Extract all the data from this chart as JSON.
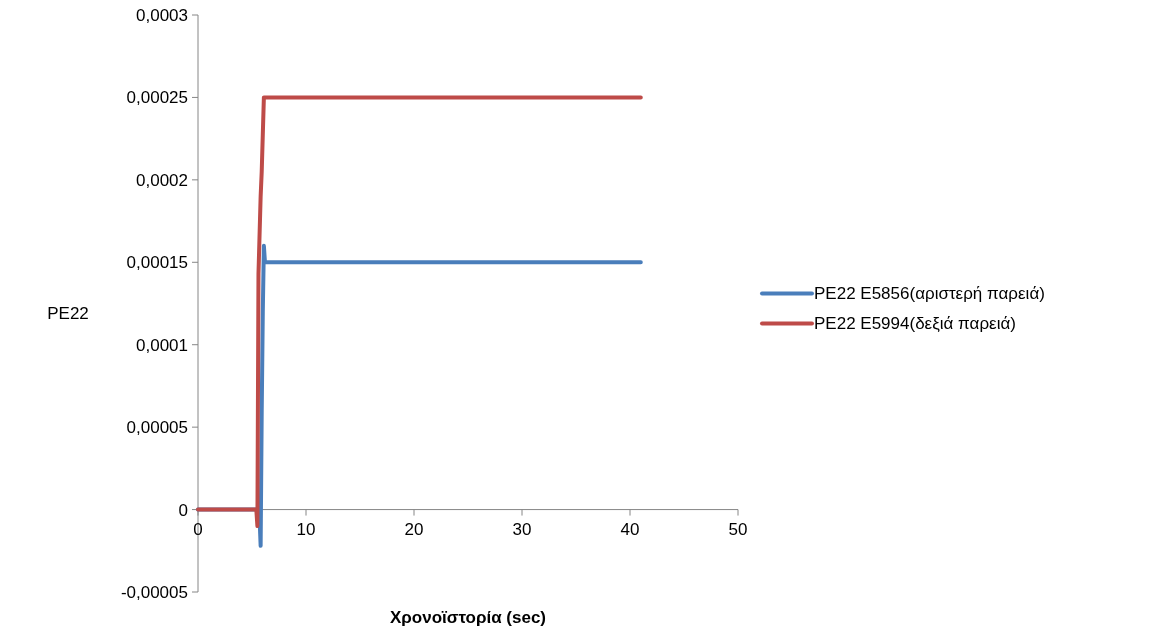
{
  "chart_data": {
    "type": "line",
    "xlabel": "Χρονοϊστορία (sec)",
    "ylabel": "PE22",
    "xlim": [
      0,
      50
    ],
    "xticks": [
      0,
      10,
      20,
      30,
      40,
      50
    ],
    "ylim": [
      -5e-05,
      0.0003
    ],
    "yticks": [
      {
        "value": -5e-05,
        "label": "-0,00005"
      },
      {
        "value": 0,
        "label": "0"
      },
      {
        "value": 5e-05,
        "label": "0,00005"
      },
      {
        "value": 0.0001,
        "label": "0,0001"
      },
      {
        "value": 0.00015,
        "label": "0,00015"
      },
      {
        "value": 0.0002,
        "label": "0,0002"
      },
      {
        "value": 0.00025,
        "label": "0,00025"
      },
      {
        "value": 0.0003,
        "label": "0,0003"
      }
    ],
    "grid": false,
    "legend": "right",
    "marker": "none",
    "line_style": "solid",
    "series": [
      {
        "name": "PE22 E5856(αριστερή παρειά)",
        "color": "#4a7ebb",
        "x": [
          0,
          5.5,
          5.7,
          5.8,
          5.9,
          6.0,
          6.1,
          6.2,
          41
        ],
        "values": [
          0,
          0,
          -5e-06,
          -2.2e-05,
          6e-05,
          0.00012,
          0.00016,
          0.00015,
          0.00015
        ]
      },
      {
        "name": "PE22 E5994(δεξιά παρειά)",
        "color": "#be4b48",
        "x": [
          0,
          5.4,
          5.5,
          5.6,
          5.8,
          5.9,
          6.1,
          41
        ],
        "values": [
          0,
          0,
          -1e-05,
          0.000143,
          0.00019,
          0.000205,
          0.00025,
          0.00025
        ]
      }
    ]
  }
}
